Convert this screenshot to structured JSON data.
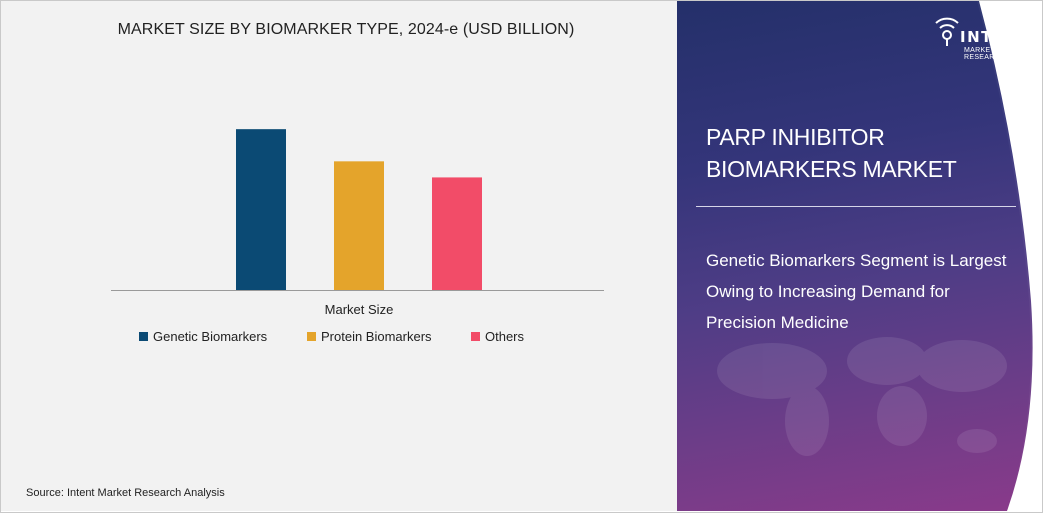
{
  "chart_data": {
    "type": "bar",
    "title": "MARKET SIZE BY BIOMARKER TYPE, 2024-e (USD BILLION)",
    "categories": [
      "Market Size"
    ],
    "series": [
      {
        "name": "Genetic Biomarkers",
        "color": "#0b4a74",
        "values": [
          1.0
        ]
      },
      {
        "name": "Protein Biomarkers",
        "color": "#e4a42b",
        "values": [
          0.8
        ]
      },
      {
        "name": "Others",
        "color": "#f24c68",
        "values": [
          0.7
        ]
      }
    ],
    "xlabel": "Market Size",
    "ylabel": "",
    "ylim": [
      0,
      1.2
    ],
    "grid": false,
    "legend": "bottom"
  },
  "source": "Source: Intent Market Research Analysis",
  "brand": {
    "name": "INTENT",
    "tagline": "MARKET RESEARCH",
    "trademark": "TM"
  },
  "report": {
    "title_line1": "PARP INHIBITOR",
    "title_line2": "BIOMARKERS MARKET",
    "insight": "Genetic Biomarkers Segment is Largest Owing to Increasing Demand for Precision Medicine"
  }
}
